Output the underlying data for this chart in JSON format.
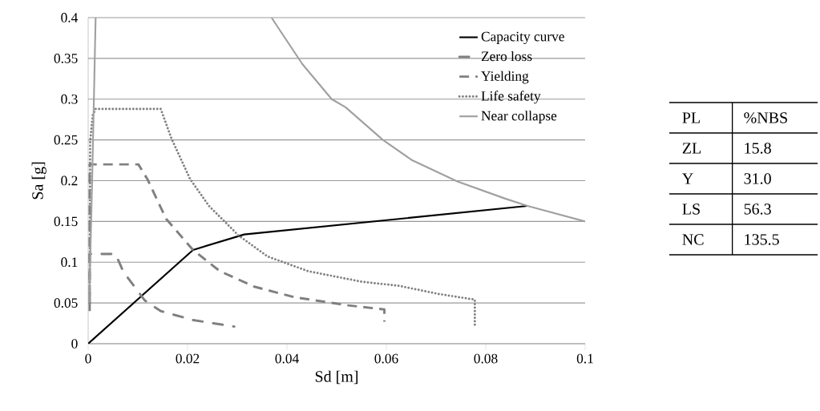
{
  "chart_data": [
    {
      "type": "line",
      "xlabel": "Sd [m]",
      "ylabel": "Sa [g]",
      "xlim": [
        0,
        0.1
      ],
      "ylim": [
        0,
        0.4
      ],
      "xticks": [
        0,
        0.02,
        0.04,
        0.06,
        0.08,
        0.1
      ],
      "yticks": [
        0,
        0.05,
        0.1,
        0.15,
        0.2,
        0.25,
        0.3,
        0.35,
        0.4
      ],
      "grid": "y",
      "legend": "top right",
      "marker": "none",
      "series": [
        {
          "name": "Capacity curve",
          "color": "#000000",
          "line_style": "solid",
          "x": [
            0,
            0.0211,
            0.0314,
            0.0884
          ],
          "values": [
            0,
            0.115,
            0.134,
            0.169
          ]
        },
        {
          "name": "Zero loss",
          "color": "#808080",
          "line_style": "dashdot",
          "x": [
            0.0003,
            0.0003,
            0.0055,
            0.0071,
            0.0114,
            0.0146,
            0.0211,
            0.0294
          ],
          "values": [
            0.05,
            0.11,
            0.11,
            0.088,
            0.053,
            0.04,
            0.029,
            0.021
          ]
        },
        {
          "name": "Yielding",
          "color": "#808080",
          "line_style": "dashed",
          "x": [
            0.0003,
            0.0003,
            0.0101,
            0.0119,
            0.0157,
            0.0211,
            0.0265,
            0.0334,
            0.0415,
            0.0523,
            0.0596,
            0.0596
          ],
          "values": [
            0.04,
            0.22,
            0.22,
            0.202,
            0.153,
            0.115,
            0.089,
            0.07,
            0.057,
            0.047,
            0.042,
            0.027
          ]
        },
        {
          "name": "Life safety",
          "color": "#808080",
          "line_style": "dotted",
          "x": [
            0.0003,
            0.0004,
            0.0009,
            0.0015,
            0.0146,
            0.0168,
            0.0205,
            0.0243,
            0.0302,
            0.0361,
            0.0442,
            0.055,
            0.0625,
            0.0705,
            0.0778,
            0.0778
          ],
          "values": [
            0.05,
            0.248,
            0.28,
            0.288,
            0.288,
            0.251,
            0.202,
            0.169,
            0.133,
            0.107,
            0.089,
            0.076,
            0.071,
            0.061,
            0.054,
            0.021
          ]
        },
        {
          "name": "Near collapse",
          "color": "#a0a0a0",
          "line_style": "solid",
          "x": [
            0.0002,
            0.0008,
            0.0015,
            null,
            0.0369,
            0.0383,
            0.0431,
            0.049,
            0.0518,
            0.0593,
            0.0652,
            0.0743,
            0.0839,
            0.0884,
            0.1
          ],
          "values": [
            0.05,
            0.2,
            0.4,
            null,
            0.4,
            0.387,
            0.343,
            0.3,
            0.29,
            0.25,
            0.225,
            0.199,
            0.178,
            0.169,
            0.15
          ]
        }
      ]
    },
    {
      "type": "other",
      "annotations": [
        "PL",
        "%NBS",
        "ZL",
        "15.8",
        "Y",
        "31.0",
        "LS",
        "56.3",
        "NC",
        "135.5"
      ]
    }
  ]
}
